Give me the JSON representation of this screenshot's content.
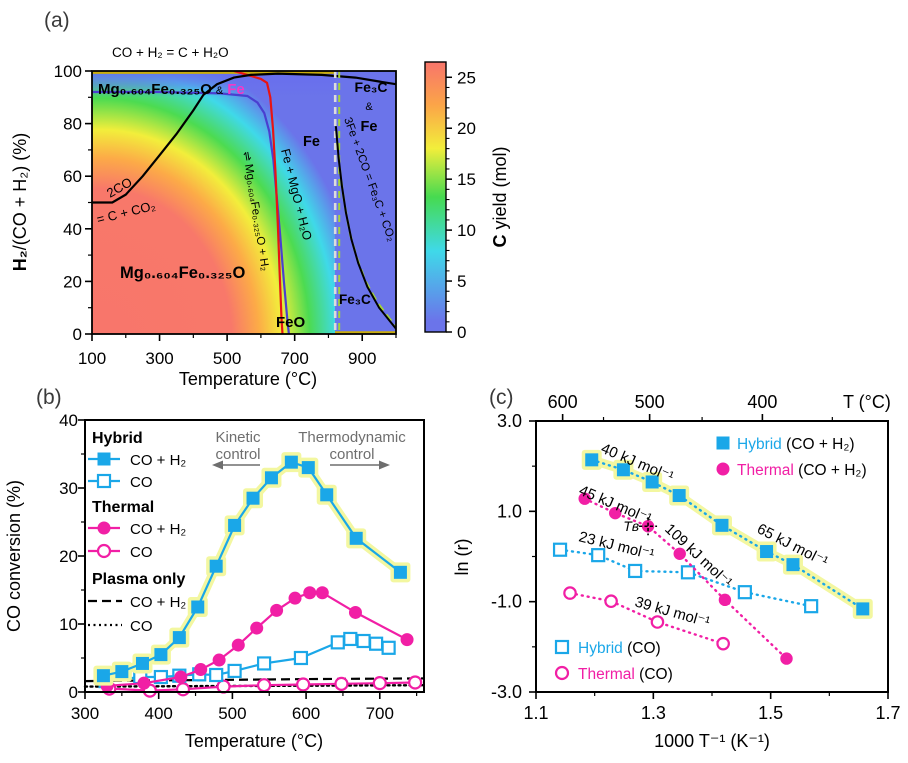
{
  "colors": {
    "cyan": "#1aa7e8",
    "magenta": "#f11fa5",
    "pink_label": "#f637c8",
    "glow": "#f3f7a0",
    "violet": "#6b74ea",
    "purple": "#4a3fd0",
    "red": "#e81414",
    "green_dash": "#a4d438",
    "gray_dash": "#dcdcdc",
    "olive": "#c9ac0a",
    "annot_gray": "#6e6e6e",
    "black": "#000000"
  },
  "panels": {
    "a": {
      "label": "(a)",
      "top_reaction": "CO + H₂ = C + H₂O",
      "xlabel": "Temperature (°C)",
      "ylabel_bold": "H₂",
      "ylabel_rest": "/(CO + H₂) (%)",
      "cb_bold": "C",
      "cb_rest": " yield (mol)",
      "region_labels": {
        "mgfe_main": "Mg₀.₆₀₄Fe₀.₃₂₅O",
        "mgfe_amp": "&",
        "mgfe_fe": "Fe",
        "fe3c_top": "Fe₃C",
        "fe3c_amp": "&",
        "fe3c_fe": "Fe",
        "boudouard_1": "2CO",
        "boudouard_2": "= C + CO₂",
        "mgfe_bulk": "Mg₀.₆₀₄Fe₀.₃₂₅O",
        "equilibrium": "⇌ Mg₀.₆₀₄Fe₀.₃₂₅O + H₂",
        "fe_mgo_h2o": "Fe + MgO + H₂O",
        "fe_region": "Fe",
        "feo": "FeO",
        "fe3c_reaction": "3Fe + 2CO = Fe₃C + CO₂",
        "fe3c_bottom": "Fe₃C"
      }
    },
    "b": {
      "label": "(b)",
      "xlabel": "Temperature (°C)",
      "ylabel": "CO conversion (%)",
      "legend": {
        "hybrid": "Hybrid",
        "thermal": "Thermal",
        "plasma": "Plasma only",
        "co_h2": "CO + H₂",
        "co": "CO"
      },
      "annot": {
        "k1": "Kinetic",
        "k2": "control",
        "t1": "Thermodynamic",
        "t2": "control"
      }
    },
    "c": {
      "label": "(c)",
      "xlabel": "1000 T⁻¹ (K⁻¹)",
      "ylabel": "ln (r)",
      "top_label": "T (°C)",
      "legend": {
        "hybrid": "Hybrid",
        "thermal": "Thermal",
        "coh2": " (CO + H₂)",
        "co": " (CO)"
      },
      "tb": "Tʙ"
    }
  },
  "chart_data": [
    {
      "type": "heatmap",
      "name": "phase-diagram-c-yield",
      "title": "Thermodynamic phase diagram with C yield",
      "xlabel": "Temperature (°C)",
      "ylabel": "H₂/(CO + H₂) (%)",
      "xlim": [
        100,
        1000
      ],
      "ylim": [
        0,
        100
      ],
      "xticks": [
        [
          100,
          "100"
        ],
        [
          300,
          "300"
        ],
        [
          500,
          "500"
        ],
        [
          700,
          "700"
        ],
        [
          900,
          "900"
        ]
      ],
      "xminor": [
        200,
        400,
        600,
        800,
        1000
      ],
      "yticks": [
        [
          0,
          "0"
        ],
        [
          20,
          "20"
        ],
        [
          40,
          "40"
        ],
        [
          60,
          "60"
        ],
        [
          80,
          "80"
        ],
        [
          100,
          "100"
        ]
      ],
      "yminor": [
        10,
        30,
        50,
        70,
        90
      ],
      "colorbar": {
        "label": "C yield (mol)",
        "ticks": [
          0,
          5,
          10,
          15,
          20,
          25
        ],
        "max": 26.5,
        "gradient": [
          "#6b74ea",
          "#3fd9e9",
          "#46da50",
          "#f2ee3b",
          "#fba548",
          "#f8756b"
        ]
      },
      "boundaries": {
        "carbon_deposition": [
          [
            100,
            50
          ],
          [
            160,
            50
          ],
          [
            200,
            53
          ],
          [
            250,
            60
          ],
          [
            300,
            68
          ],
          [
            350,
            76
          ],
          [
            400,
            85
          ],
          [
            430,
            91
          ],
          [
            470,
            95
          ],
          [
            520,
            97.5
          ],
          [
            570,
            98.5
          ],
          [
            650,
            99
          ],
          [
            780,
            98.5
          ],
          [
            880,
            97.5
          ],
          [
            950,
            96
          ],
          [
            1000,
            95
          ]
        ],
        "mgfe_purple": [
          [
            100,
            92
          ],
          [
            300,
            92
          ],
          [
            480,
            91.5
          ],
          [
            560,
            90.5
          ],
          [
            590,
            88
          ],
          [
            610,
            84
          ],
          [
            625,
            77
          ],
          [
            637,
            66
          ],
          [
            647,
            52
          ],
          [
            657,
            38
          ],
          [
            668,
            20
          ],
          [
            678,
            6
          ],
          [
            683,
            0
          ]
        ],
        "feo_red": [
          [
            520,
            100
          ],
          [
            560,
            98.5
          ],
          [
            600,
            97
          ],
          [
            618,
            95.5
          ],
          [
            628,
            90
          ],
          [
            636,
            78
          ],
          [
            643,
            62
          ],
          [
            650,
            42
          ],
          [
            656,
            22
          ],
          [
            661,
            6
          ],
          [
            664,
            0
          ]
        ],
        "fe3c_black": [
          [
            822,
            79
          ],
          [
            830,
            67
          ],
          [
            840,
            56
          ],
          [
            852,
            46
          ],
          [
            868,
            36
          ],
          [
            888,
            27
          ],
          [
            915,
            18
          ],
          [
            950,
            10
          ],
          [
            1000,
            2
          ]
        ],
        "fe3c_green_dashed": [
          [
            826,
            73
          ],
          [
            836,
            60
          ],
          [
            848,
            49
          ],
          [
            864,
            38
          ],
          [
            884,
            29
          ],
          [
            910,
            20
          ],
          [
            945,
            12
          ],
          [
            980,
            6
          ],
          [
            1000,
            3
          ]
        ],
        "vertical_dashed_T": 820
      }
    },
    {
      "type": "line",
      "name": "co-conversion-vs-temperature",
      "xlabel": "Temperature (°C)",
      "ylabel": "CO conversion (%)",
      "xlim": [
        300,
        760
      ],
      "ylim": [
        0,
        40
      ],
      "xticks": [
        [
          300,
          "300"
        ],
        [
          400,
          "400"
        ],
        [
          500,
          "500"
        ],
        [
          600,
          "600"
        ],
        [
          700,
          "700"
        ]
      ],
      "xminor": [
        350,
        450,
        550,
        650,
        750
      ],
      "yticks": [
        [
          0,
          "0"
        ],
        [
          10,
          "10"
        ],
        [
          20,
          "20"
        ],
        [
          30,
          "30"
        ],
        [
          40,
          "40"
        ]
      ],
      "yminor": [
        5,
        15,
        25,
        35
      ],
      "series": [
        {
          "name": "hybrid-co-h2",
          "label": "Hybrid CO + H₂",
          "marker": "square",
          "fill": true,
          "glow": true,
          "color": "cyan",
          "data": [
            [
              325,
              2.4
            ],
            [
              350,
              3.0
            ],
            [
              378,
              4.2
            ],
            [
              403,
              5.5
            ],
            [
              428,
              8.0
            ],
            [
              453,
              12.5
            ],
            [
              478,
              18.5
            ],
            [
              503,
              24.5
            ],
            [
              528,
              28.5
            ],
            [
              553,
              31.5
            ],
            [
              580,
              33.8
            ],
            [
              603,
              33.0
            ],
            [
              628,
              29.0
            ],
            [
              668,
              22.6
            ],
            [
              728,
              17.6
            ]
          ]
        },
        {
          "name": "hybrid-co",
          "label": "Hybrid CO",
          "marker": "square",
          "fill": false,
          "color": "cyan",
          "data": [
            [
              328,
              1.6
            ],
            [
              375,
              2.2
            ],
            [
              403,
              2.2
            ],
            [
              428,
              2.4
            ],
            [
              455,
              2.6
            ],
            [
              478,
              2.5
            ],
            [
              503,
              3.1
            ],
            [
              543,
              4.2
            ],
            [
              593,
              5.0
            ],
            [
              643,
              7.3
            ],
            [
              660,
              7.8
            ],
            [
              678,
              7.5
            ],
            [
              695,
              7.1
            ],
            [
              712,
              6.5
            ]
          ]
        },
        {
          "name": "thermal-co-h2",
          "label": "Thermal CO + H₂",
          "marker": "circle",
          "fill": true,
          "color": "magenta",
          "data": [
            [
              330,
              0.9
            ],
            [
              380,
              1.3
            ],
            [
              430,
              2.2
            ],
            [
              457,
              3.3
            ],
            [
              482,
              4.7
            ],
            [
              508,
              6.9
            ],
            [
              533,
              9.4
            ],
            [
              560,
              12.0
            ],
            [
              585,
              13.8
            ],
            [
              605,
              14.6
            ],
            [
              622,
              14.6
            ],
            [
              667,
              11.7
            ],
            [
              737,
              7.7
            ]
          ]
        },
        {
          "name": "thermal-co",
          "label": "Thermal CO",
          "marker": "circle",
          "fill": false,
          "color": "magenta",
          "data": [
            [
              333,
              0.5
            ],
            [
              388,
              0.2
            ],
            [
              433,
              0.4
            ],
            [
              488,
              0.8
            ],
            [
              543,
              1.0
            ],
            [
              596,
              1.1
            ],
            [
              648,
              1.2
            ],
            [
              700,
              1.3
            ],
            [
              748,
              1.4
            ]
          ]
        },
        {
          "name": "plasma-co-h2",
          "label": "Plasma only CO + H₂",
          "line": "dashed",
          "color": "black",
          "data": [
            [
              300,
              1.6
            ],
            [
              400,
              1.7
            ],
            [
              500,
              1.8
            ],
            [
              600,
              1.9
            ],
            [
              760,
              2.0
            ]
          ]
        },
        {
          "name": "plasma-co",
          "label": "Plasma only CO",
          "line": "dotted",
          "color": "black",
          "data": [
            [
              300,
              0.8
            ],
            [
              760,
              1.0
            ]
          ]
        }
      ],
      "annotations": [
        "Kinetic control",
        "Thermodynamic control"
      ]
    },
    {
      "type": "scatter",
      "name": "arrhenius-plot",
      "xlabel": "1000 T⁻¹ (K⁻¹)",
      "ylabel": "ln (r)",
      "xlim": [
        1.1,
        1.7
      ],
      "ylim": [
        -3,
        3
      ],
      "xticks": [
        [
          1.1,
          "1.1"
        ],
        [
          1.3,
          "1.3"
        ],
        [
          1.5,
          "1.5"
        ],
        [
          1.7,
          "1.7"
        ]
      ],
      "xminor": [
        1.2,
        1.4,
        1.6
      ],
      "yticks": [
        [
          3,
          "3.0"
        ],
        [
          1,
          "1.0"
        ],
        [
          -1,
          "-1.0"
        ],
        [
          -3,
          "-3.0"
        ]
      ],
      "yminor": [
        2,
        0,
        -2
      ],
      "top_axis": {
        "label": "T (°C)",
        "ticks": [
          [
            1.1454,
            "600"
          ],
          [
            1.2937,
            "500"
          ],
          [
            1.4859,
            "400"
          ]
        ],
        "minor": [
          1.2151,
          1.3831,
          1.6051
        ]
      },
      "series": [
        {
          "name": "c-hybrid-co-h2",
          "label": "Hybrid (CO + H₂)",
          "marker": "square",
          "fill": true,
          "glow": true,
          "color": "cyan",
          "line": "dotted",
          "data": [
            [
              1.195,
              2.14
            ],
            [
              1.249,
              1.92
            ],
            [
              1.298,
              1.65
            ],
            [
              1.344,
              1.35
            ],
            [
              1.417,
              0.69
            ],
            [
              1.493,
              0.11
            ],
            [
              1.538,
              -0.18
            ],
            [
              1.657,
              -1.16
            ]
          ],
          "ea_labels": [
            "40 kJ mol⁻¹",
            "65 kJ mol⁻¹"
          ]
        },
        {
          "name": "c-thermal-co-h2",
          "label": "Thermal (CO + H₂)",
          "marker": "circle",
          "fill": true,
          "color": "magenta",
          "line": "dotted",
          "data": [
            [
              1.183,
              1.28
            ],
            [
              1.235,
              0.96
            ],
            [
              1.291,
              0.67
            ],
            [
              1.345,
              0.06
            ],
            [
              1.422,
              -0.96
            ],
            [
              1.527,
              -2.26
            ]
          ],
          "ea_labels": [
            "45 kJ mol⁻¹",
            "109 kJ mol⁻¹"
          ],
          "break_point": [
            1.291,
            0.67
          ],
          "break_label": "Tʙ"
        },
        {
          "name": "c-hybrid-co",
          "label": "Hybrid (CO)",
          "marker": "square",
          "fill": false,
          "color": "cyan",
          "line": "dotted",
          "data": [
            [
              1.141,
              0.15
            ],
            [
              1.206,
              0.03
            ],
            [
              1.269,
              -0.32
            ],
            [
              1.359,
              -0.35
            ],
            [
              1.456,
              -0.79
            ],
            [
              1.569,
              -1.1
            ]
          ],
          "ea_labels": [
            "23 kJ mol⁻¹"
          ]
        },
        {
          "name": "c-thermal-co",
          "label": "Thermal (CO)",
          "marker": "circle",
          "fill": false,
          "color": "magenta",
          "line": "dotted",
          "data": [
            [
              1.158,
              -0.81
            ],
            [
              1.228,
              -0.99
            ],
            [
              1.307,
              -1.45
            ],
            [
              1.419,
              -1.93
            ]
          ],
          "ea_labels": [
            "39 kJ mol⁻¹"
          ]
        }
      ]
    }
  ]
}
